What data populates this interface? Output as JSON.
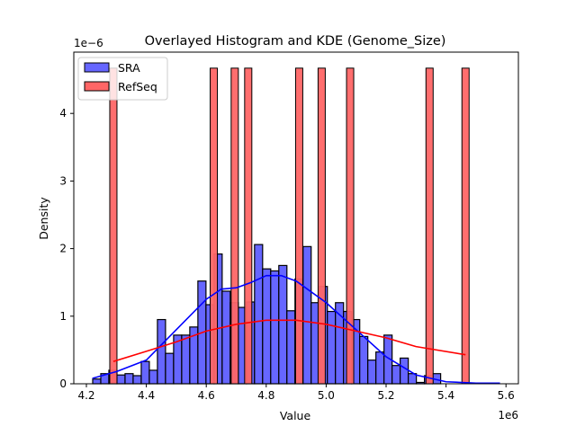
{
  "chart_data": {
    "type": "histogram+kde",
    "title": "Overlayed Histogram and KDE (Genome_Size)",
    "xlabel": "Value",
    "ylabel": "Density",
    "x_offset_label": "1e6",
    "y_offset_label": "1e−6",
    "xlim": [
      4.18,
      5.64
    ],
    "ylim": [
      0,
      4.9
    ],
    "xticks": [
      4.2,
      4.4,
      4.6,
      4.8,
      5.0,
      5.2,
      5.4,
      5.6
    ],
    "xtick_labels": [
      "4.2",
      "4.4",
      "4.6",
      "4.8",
      "5.0",
      "5.2",
      "5.4",
      "5.6"
    ],
    "yticks": [
      0,
      1,
      2,
      3,
      4
    ],
    "ytick_labels": [
      "0",
      "1",
      "2",
      "3",
      "4"
    ],
    "legend": {
      "position": "top-left",
      "entries": [
        "SRA",
        "RefSeq"
      ]
    },
    "series": [
      {
        "name": "SRA",
        "color": "#0000ff",
        "fill": "#6666ff",
        "bin_start": 4.221,
        "bin_width": 0.027,
        "densities": [
          0.07,
          0.15,
          0.2,
          0.13,
          0.15,
          0.12,
          0.33,
          0.2,
          0.95,
          0.45,
          0.72,
          0.72,
          0.84,
          1.52,
          1.17,
          1.92,
          1.37,
          1.2,
          1.13,
          1.21,
          2.06,
          1.7,
          1.67,
          1.75,
          1.08,
          1.55,
          2.03,
          1.2,
          1.44,
          1.07,
          1.2,
          1.07,
          0.95,
          0.7,
          0.35,
          0.47,
          0.72,
          0.27,
          0.38,
          0.15,
          0.02,
          0.12,
          0.15
        ],
        "kde": {
          "x": [
            4.22,
            4.3,
            4.4,
            4.5,
            4.6,
            4.65,
            4.7,
            4.75,
            4.8,
            4.85,
            4.9,
            5.0,
            5.1,
            5.2,
            5.3,
            5.4,
            5.5,
            5.58
          ],
          "y": [
            0.08,
            0.18,
            0.35,
            0.8,
            1.25,
            1.4,
            1.42,
            1.5,
            1.6,
            1.6,
            1.52,
            1.2,
            0.8,
            0.4,
            0.13,
            0.03,
            0.01,
            0.01
          ]
        }
      },
      {
        "name": "RefSeq",
        "color": "#ff0000",
        "fill": "#ff6666",
        "bar_width": 0.024,
        "bar_centers": [
          4.29,
          4.625,
          4.695,
          4.74,
          4.91,
          4.985,
          5.08,
          5.345,
          5.465
        ],
        "bar_density": 4.67,
        "kde": {
          "x": [
            4.29,
            4.4,
            4.5,
            4.6,
            4.7,
            4.8,
            4.9,
            5.0,
            5.1,
            5.2,
            5.3,
            5.465
          ],
          "y": [
            0.33,
            0.48,
            0.62,
            0.78,
            0.88,
            0.94,
            0.94,
            0.88,
            0.78,
            0.68,
            0.55,
            0.43
          ]
        }
      }
    ]
  }
}
